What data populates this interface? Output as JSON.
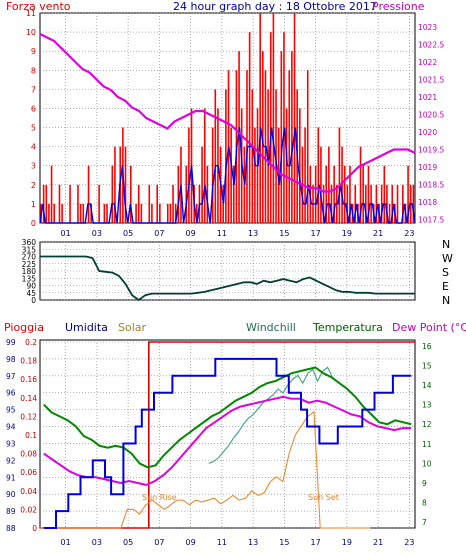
{
  "header": {
    "left": "Forza vento",
    "center": "24 hour graph day : 18 Ottobre 2017",
    "right": "Pressione",
    "colors": {
      "left": "#e00000",
      "center": "#0000a0",
      "right": "#c000c0"
    }
  },
  "charts_axis_labels": {
    "hours": [
      "01",
      "03",
      "05",
      "07",
      "09",
      "11",
      "13",
      "15",
      "17",
      "19",
      "21",
      "23"
    ]
  },
  "chart_data": [
    {
      "type": "bar",
      "id": "wind",
      "series": [
        {
          "name": "Forza vento",
          "kind": "bars",
          "color": "#ff0000",
          "values": [
            1,
            2,
            2,
            1,
            3,
            1,
            0,
            2,
            1,
            0,
            0,
            2,
            0,
            0,
            2,
            1,
            1,
            0,
            3,
            1,
            0,
            0,
            2,
            0,
            1,
            1,
            0,
            3,
            4,
            0,
            4,
            5,
            4,
            0,
            3,
            0,
            1,
            2,
            1,
            0,
            0,
            2,
            1,
            0,
            2,
            1,
            0,
            0,
            1,
            1,
            2,
            1,
            3,
            4,
            0,
            3,
            5,
            6,
            2,
            1,
            2,
            4,
            6,
            3,
            0,
            5,
            7,
            6,
            4,
            2,
            7,
            8,
            5,
            3,
            8,
            9,
            6,
            4,
            8,
            10,
            7,
            5,
            6,
            11,
            9,
            8,
            7,
            10,
            11,
            7,
            5,
            9,
            10,
            6,
            8,
            9,
            11,
            7,
            6,
            4,
            5,
            8,
            3,
            2,
            3,
            5,
            4,
            2,
            3,
            4,
            2,
            3,
            2,
            5,
            4,
            3,
            2,
            3,
            1,
            2,
            1,
            4,
            3,
            2,
            3,
            2,
            1,
            2,
            1,
            2,
            3,
            2,
            1,
            2,
            1,
            2,
            0,
            2,
            1,
            3,
            2,
            2
          ]
        },
        {
          "name": "Vento medio",
          "kind": "line",
          "color": "#0000e0",
          "values": [
            0,
            1,
            0,
            0,
            0,
            0,
            0,
            0,
            0,
            0,
            0,
            0,
            0,
            0,
            0,
            0,
            0,
            0,
            1,
            1,
            0,
            0,
            0,
            0,
            0,
            0,
            0,
            1,
            1,
            0,
            2,
            3,
            1,
            0,
            1,
            0,
            0,
            0,
            0,
            0,
            0,
            0,
            0,
            0,
            0,
            0,
            0,
            0,
            0,
            0,
            0,
            0,
            1,
            2,
            0,
            1,
            2,
            3,
            1,
            0,
            1,
            1,
            2,
            1,
            0,
            2,
            3,
            3,
            2,
            1,
            3,
            4,
            3,
            2,
            4,
            5,
            3,
            2,
            4,
            4,
            4,
            3,
            3,
            5,
            4,
            4,
            3,
            5,
            4,
            3,
            2,
            4,
            5,
            3,
            3,
            4,
            5,
            3,
            2,
            1,
            1,
            2,
            1,
            1,
            1,
            2,
            1,
            0,
            1,
            1,
            0,
            1,
            1,
            2,
            1,
            1,
            0,
            1,
            0,
            1,
            0,
            1,
            1,
            0,
            1,
            1,
            0,
            1,
            0,
            1,
            1,
            0,
            0,
            1,
            0,
            0,
            0,
            1,
            0,
            1,
            1,
            0
          ]
        },
        {
          "name": "Pressione",
          "kind": "line",
          "color": "#e000e0",
          "values": [
            1022.8,
            1022.7,
            1022.6,
            1022.4,
            1022.2,
            1022.0,
            1021.8,
            1021.7,
            1021.5,
            1021.3,
            1021.2,
            1021.0,
            1020.9,
            1020.7,
            1020.6,
            1020.4,
            1020.3,
            1020.2,
            1020.1,
            1020.3,
            1020.4,
            1020.5,
            1020.6,
            1020.6,
            1020.5,
            1020.4,
            1020.3,
            1020.2,
            1020.0,
            1019.8,
            1019.6,
            1019.4,
            1019.2,
            1019.0,
            1018.8,
            1018.7,
            1018.6,
            1018.5,
            1018.4,
            1018.4,
            1018.3,
            1018.3,
            1018.4,
            1018.6,
            1018.8,
            1019.0,
            1019.1,
            1019.2,
            1019.3,
            1019.4,
            1019.5,
            1019.5,
            1019.5,
            1019.4
          ]
        }
      ],
      "left_axis": {
        "min": 0,
        "max": 11,
        "ticks": [
          "0",
          "1",
          "2",
          "3",
          "4",
          "5",
          "6",
          "7",
          "8",
          "9",
          "10",
          "11"
        ],
        "color": "#e00000"
      },
      "right_axis": {
        "min": 1017.4,
        "max": 1023.4,
        "ticks": [
          "1017.5",
          "1018",
          "1018.5",
          "1019",
          "1019.5",
          "1020",
          "1020.5",
          "1021",
          "1021.5",
          "1022",
          "1022.5",
          "1023"
        ],
        "color": "#c000c0"
      }
    },
    {
      "type": "line",
      "id": "direction",
      "series": [
        {
          "name": "Direzione vento",
          "color": "#004030",
          "values": [
            270,
            270,
            270,
            270,
            270,
            270,
            270,
            270,
            260,
            180,
            175,
            170,
            150,
            100,
            30,
            0,
            30,
            40,
            40,
            40,
            40,
            40,
            40,
            40,
            45,
            50,
            60,
            70,
            80,
            90,
            100,
            110,
            110,
            100,
            120,
            110,
            120,
            130,
            120,
            110,
            130,
            140,
            120,
            100,
            80,
            60,
            50,
            50,
            45,
            45,
            45,
            40,
            40,
            40,
            40,
            40,
            40,
            40
          ]
        }
      ],
      "left_axis": {
        "min": 0,
        "max": 360,
        "ticks": [
          "0",
          "45",
          "90",
          "135",
          "180",
          "225",
          "270",
          "315",
          "360"
        ]
      },
      "right_labels": [
        "N",
        "W",
        "S",
        "E",
        "N"
      ]
    },
    {
      "type": "line",
      "id": "weather",
      "legend": [
        "Pioggia",
        "Umidita",
        "Solar",
        "Windchill",
        "Temperatura",
        "Dew Point (°C)"
      ],
      "legend_colors": [
        "#e00000",
        "#000090",
        "#a08020",
        "#207050",
        "#006000",
        "#c000c0"
      ],
      "annotations": [
        "Sun Rise",
        "Sun Set"
      ],
      "series": [
        {
          "name": "Umidita",
          "color": "#0000dd",
          "values": [
            88,
            88,
            89,
            89,
            90,
            90,
            91,
            91,
            92,
            92,
            91,
            90,
            90,
            93,
            93,
            94,
            95,
            95,
            96,
            96,
            96,
            97,
            97,
            97,
            97,
            97,
            97,
            97,
            98,
            98,
            98,
            98,
            98,
            98,
            98,
            98,
            98,
            98,
            97,
            97,
            96,
            96,
            95,
            94,
            94,
            93,
            93,
            93,
            94,
            94,
            94,
            94,
            95,
            95,
            96,
            96,
            96,
            97,
            97,
            97,
            97
          ]
        },
        {
          "name": "Temperatura",
          "color": "#008800",
          "values": [
            13,
            12.6,
            12.4,
            12.2,
            11.9,
            11.4,
            11.2,
            10.9,
            10.8,
            10.9,
            10.8,
            10.5,
            10,
            9.8,
            9.9,
            10.4,
            10.8,
            11.2,
            11.5,
            11.8,
            12.1,
            12.4,
            12.6,
            12.9,
            13.2,
            13.4,
            13.6,
            13.9,
            14.1,
            14.2,
            14.4,
            14.6,
            14.7,
            14.8,
            14.9,
            14.6,
            14.4,
            14.1,
            13.8,
            13.4,
            12.9,
            12.5,
            12.1,
            12,
            12.2,
            12.1,
            12
          ]
        },
        {
          "name": "Dew Point",
          "color": "#e000e0",
          "values": [
            10.5,
            10.2,
            9.9,
            9.6,
            9.4,
            9.3,
            9.3,
            9.2,
            9.1,
            9.0,
            9.1,
            9.0,
            8.9,
            9.1,
            9.4,
            9.8,
            10.3,
            10.8,
            11.3,
            11.8,
            12.1,
            12.4,
            12.7,
            12.9,
            13.0,
            13.1,
            13.2,
            13.3,
            13.4,
            13.3,
            13.3,
            13.1,
            13.2,
            13.1,
            12.9,
            12.7,
            12.5,
            12.4,
            12.1,
            11.9,
            11.8,
            11.7,
            11.8,
            11.8
          ]
        },
        {
          "name": "Windchill",
          "color": "#40a080",
          "values": [
            10,
            10.1,
            10.3,
            10.6,
            10.9,
            11.3,
            11.6,
            12,
            12.3,
            12.5,
            12.8,
            13.1,
            13.3,
            13.5,
            13.8,
            13.6,
            14,
            14.3,
            14.5,
            14.1,
            14.6,
            14.8,
            14.2,
            14.7,
            14.9,
            14.4
          ]
        },
        {
          "name": "Solar",
          "color": "#f08020",
          "values": [
            0,
            0,
            0,
            0,
            0,
            0,
            0,
            0,
            0,
            0,
            0,
            0,
            0,
            0,
            0.02,
            0.02,
            0.015,
            0.025,
            0.03,
            0.025,
            0.02,
            0.025,
            0.03,
            0.03,
            0.025,
            0.03,
            0.028,
            0.03,
            0.032,
            0.026,
            0.03,
            0.035,
            0.03,
            0.032,
            0.04,
            0.035,
            0.038,
            0.05,
            0.055,
            0.05,
            0.08,
            0.1,
            0.11,
            0.12,
            0.125,
            0,
            0,
            0,
            0,
            0,
            0,
            0,
            0,
            0
          ]
        },
        {
          "name": "Pioggia",
          "color": "#e00000",
          "values": [
            0,
            0,
            0,
            0,
            0,
            0,
            0,
            0.2,
            0.2,
            0.2,
            0.2,
            0.2,
            0.2,
            0.2,
            0.2,
            0.2,
            0.2,
            0.2,
            0.2,
            0.2,
            0.2,
            0.2,
            0.2,
            0.2,
            0.2
          ]
        }
      ],
      "left_axis_umidita": {
        "ticks": [
          "88",
          "89",
          "90",
          "91",
          "92",
          "93",
          "94",
          "95",
          "96",
          "97",
          "98",
          "99"
        ],
        "color": "#000090"
      },
      "left_axis_pioggia": {
        "ticks": [
          "0",
          "0.02",
          "0.04",
          "0.06",
          "0.08",
          "0.1",
          "0.12",
          "0.14",
          "0.16",
          "0.18",
          "0.2"
        ],
        "color": "#c00000"
      },
      "right_axis_temp": {
        "ticks": [
          "7",
          "8",
          "9",
          "10",
          "11",
          "12",
          "13",
          "14",
          "15",
          "16"
        ],
        "color": "#006000"
      }
    }
  ]
}
